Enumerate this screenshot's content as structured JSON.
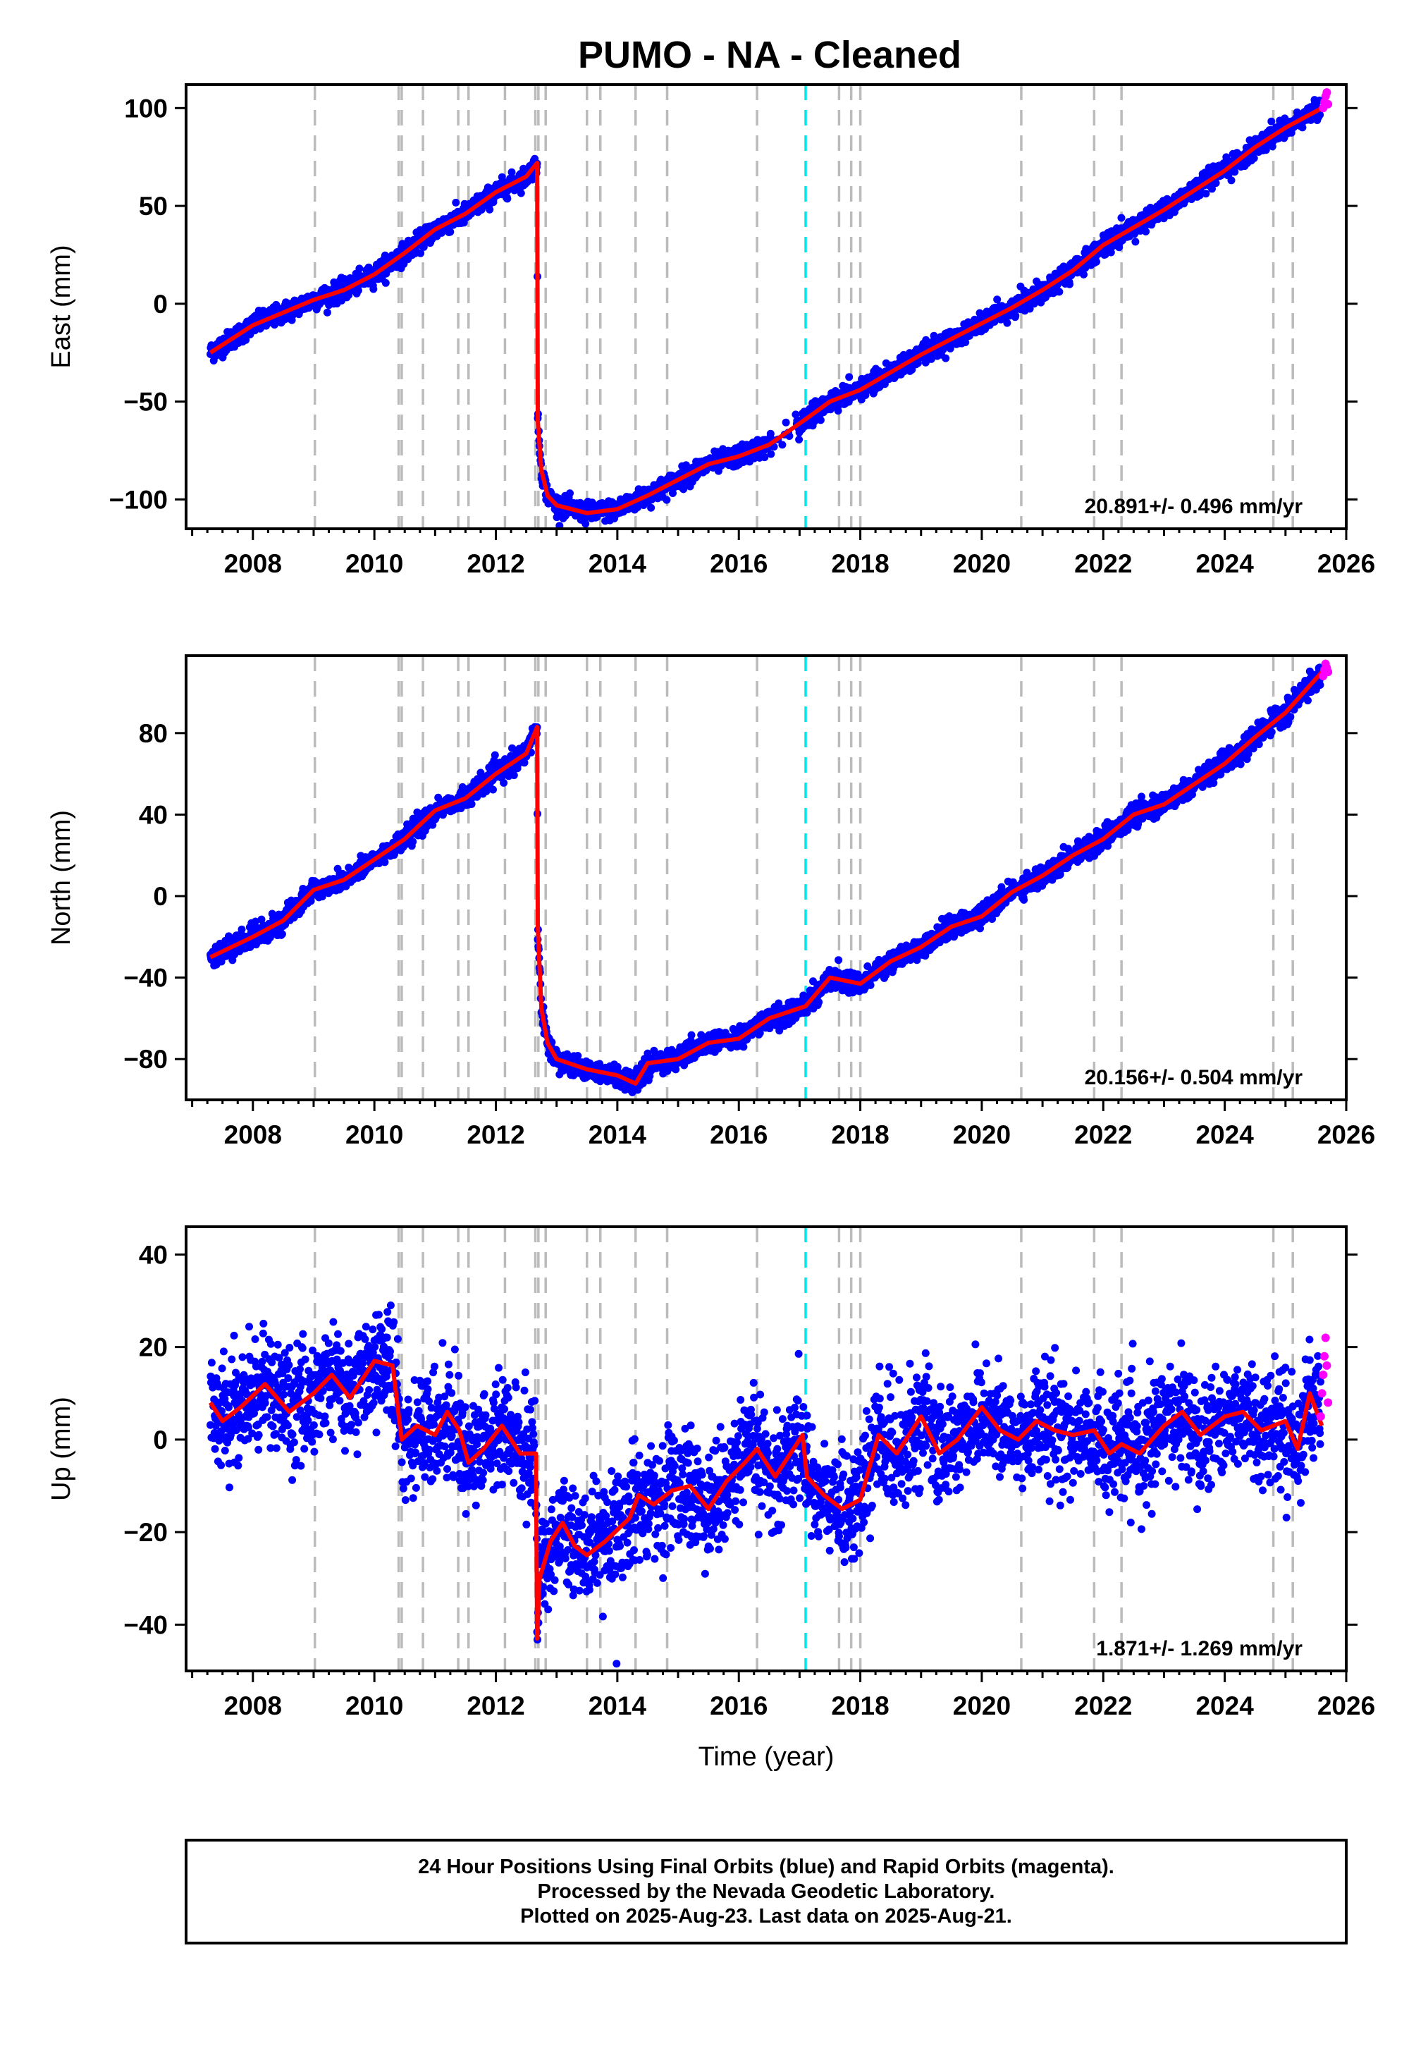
{
  "title": "PUMO  - NA - Cleaned",
  "footer": {
    "line1": "24 Hour Positions Using Final Orbits (blue) and Rapid Orbits (magenta).",
    "line2": "Processed by the Nevada Geodetic Laboratory.",
    "line3": "Plotted on 2025-Aug-23. Last data on 2025-Aug-21."
  },
  "colors": {
    "final_orbits": "#0000ff",
    "rapid_orbits": "#ff00ff",
    "model": "#ff0000",
    "equipment_change": "#bbbbbb",
    "earthquake": "#00e5ee"
  },
  "chart_data": [
    {
      "type": "scatter",
      "ylabel": "East (mm)",
      "xlabel": "",
      "xlim": [
        2006.9,
        2026.0
      ],
      "ylim": [
        -115,
        112
      ],
      "xticks": [
        2008,
        2010,
        2012,
        2014,
        2016,
        2018,
        2020,
        2022,
        2024,
        2026
      ],
      "yticks": [
        -100,
        -50,
        0,
        50,
        100
      ],
      "rate": "20.891+/- 0.496 mm/yr",
      "scatter_noise": 2.5,
      "events_gray": [
        2009.02,
        2010.4,
        2010.45,
        2010.8,
        2011.38,
        2011.55,
        2012.15,
        2012.65,
        2012.7,
        2012.82,
        2013.5,
        2013.72,
        2014.3,
        2014.82,
        2016.3,
        2017.65,
        2017.85,
        2018.0,
        2020.65,
        2021.85,
        2022.3,
        2024.8,
        2025.12
      ],
      "events_cyan": [
        2017.1
      ],
      "series": [
        {
          "role": "model",
          "x": [
            2007.3,
            2008.0,
            2009.0,
            2009.5,
            2010.0,
            2010.5,
            2011.0,
            2011.5,
            2012.0,
            2012.5,
            2012.68,
            2012.69,
            2012.75,
            2012.85,
            2013.0,
            2013.5,
            2014.0,
            2014.5,
            2015.0,
            2015.5,
            2016.0,
            2016.5,
            2017.1,
            2017.5,
            2018.0,
            2018.5,
            2019.0,
            2019.5,
            2020.0,
            2020.5,
            2021.0,
            2021.5,
            2022.0,
            2022.5,
            2023.0,
            2023.5,
            2024.0,
            2024.5,
            2025.0,
            2025.6
          ],
          "y": [
            -25,
            -11,
            2,
            7,
            15,
            26,
            38,
            46,
            57,
            65,
            72,
            -60,
            -85,
            -98,
            -103,
            -107,
            -105,
            -98,
            -90,
            -82,
            -78,
            -72,
            -59,
            -50,
            -44,
            -35,
            -26,
            -18,
            -10,
            -2,
            7,
            17,
            30,
            39,
            48,
            58,
            68,
            80,
            90,
            100
          ]
        },
        {
          "role": "rapid",
          "x": [
            2025.62,
            2025.64,
            2025.66,
            2025.68,
            2025.7
          ],
          "y": [
            100,
            103,
            106,
            108,
            102
          ]
        }
      ]
    },
    {
      "type": "scatter",
      "ylabel": "North (mm)",
      "xlabel": "",
      "xlim": [
        2006.9,
        2026.0
      ],
      "ylim": [
        -100,
        118
      ],
      "xticks": [
        2008,
        2010,
        2012,
        2014,
        2016,
        2018,
        2020,
        2022,
        2024,
        2026
      ],
      "yticks": [
        -80,
        -40,
        0,
        40,
        80
      ],
      "rate": "20.156+/- 0.504 mm/yr",
      "scatter_noise": 2.5,
      "events_gray": [
        2009.02,
        2010.4,
        2010.45,
        2010.8,
        2011.38,
        2011.55,
        2012.15,
        2012.65,
        2012.7,
        2012.82,
        2013.5,
        2013.72,
        2014.3,
        2014.82,
        2016.3,
        2017.65,
        2017.85,
        2018.0,
        2020.65,
        2021.85,
        2022.3,
        2024.8,
        2025.12
      ],
      "events_cyan": [
        2017.1
      ],
      "series": [
        {
          "role": "model",
          "x": [
            2007.3,
            2008.0,
            2008.5,
            2009.0,
            2009.5,
            2010.0,
            2010.5,
            2011.0,
            2011.5,
            2012.0,
            2012.5,
            2012.68,
            2012.69,
            2012.75,
            2012.85,
            2013.0,
            2013.5,
            2014.0,
            2014.3,
            2014.5,
            2015.0,
            2015.5,
            2016.0,
            2016.5,
            2017.1,
            2017.5,
            2018.0,
            2018.5,
            2019.0,
            2019.5,
            2020.0,
            2020.5,
            2021.0,
            2021.5,
            2022.0,
            2022.5,
            2023.0,
            2023.5,
            2024.0,
            2024.5,
            2025.0,
            2025.6
          ],
          "y": [
            -30,
            -20,
            -12,
            3,
            8,
            18,
            28,
            42,
            48,
            60,
            70,
            83,
            -15,
            -55,
            -72,
            -80,
            -85,
            -88,
            -92,
            -82,
            -80,
            -72,
            -70,
            -60,
            -54,
            -40,
            -43,
            -32,
            -25,
            -15,
            -10,
            2,
            10,
            20,
            28,
            40,
            45,
            55,
            65,
            78,
            90,
            110
          ]
        },
        {
          "role": "rapid",
          "x": [
            2025.62,
            2025.64,
            2025.66,
            2025.68,
            2025.7
          ],
          "y": [
            108,
            111,
            114,
            112,
            110
          ]
        }
      ]
    },
    {
      "type": "scatter",
      "ylabel": "Up (mm)",
      "xlabel": "Time (year)",
      "xlim": [
        2006.9,
        2026.0
      ],
      "ylim": [
        -50,
        46
      ],
      "xticks": [
        2008,
        2010,
        2012,
        2014,
        2016,
        2018,
        2020,
        2022,
        2024,
        2026
      ],
      "yticks": [
        -40,
        -20,
        0,
        20,
        40
      ],
      "rate": "1.871+/- 1.269 mm/yr",
      "scatter_noise": 6,
      "events_gray": [
        2009.02,
        2010.4,
        2010.45,
        2010.8,
        2011.38,
        2011.55,
        2012.15,
        2012.65,
        2012.7,
        2012.82,
        2013.5,
        2013.72,
        2014.3,
        2014.82,
        2016.3,
        2017.65,
        2017.85,
        2018.0,
        2020.65,
        2021.85,
        2022.3,
        2024.8,
        2025.12
      ],
      "events_cyan": [
        2017.1
      ],
      "series": [
        {
          "role": "model",
          "x": [
            2007.3,
            2007.5,
            2007.8,
            2008.2,
            2008.6,
            2009.0,
            2009.3,
            2009.6,
            2010.0,
            2010.3,
            2010.45,
            2010.7,
            2011.0,
            2011.2,
            2011.4,
            2011.55,
            2011.8,
            2012.1,
            2012.4,
            2012.66,
            2012.68,
            2012.72,
            2012.9,
            2013.1,
            2013.3,
            2013.5,
            2013.8,
            2014.2,
            2014.35,
            2014.6,
            2014.9,
            2015.2,
            2015.5,
            2015.8,
            2016.1,
            2016.3,
            2016.6,
            2017.05,
            2017.12,
            2017.4,
            2017.7,
            2018.0,
            2018.3,
            2018.6,
            2019.0,
            2019.3,
            2019.6,
            2020.0,
            2020.3,
            2020.6,
            2020.9,
            2021.2,
            2021.5,
            2021.85,
            2022.1,
            2022.3,
            2022.6,
            2023.0,
            2023.3,
            2023.6,
            2024.0,
            2024.3,
            2024.6,
            2025.0,
            2025.2,
            2025.4,
            2025.6
          ],
          "y": [
            8,
            4,
            7,
            12,
            6,
            10,
            14,
            9,
            17,
            16,
            0,
            3,
            1,
            6,
            2,
            -5,
            -2,
            3,
            -3,
            -3,
            -43,
            -30,
            -22,
            -18,
            -23,
            -25,
            -22,
            -17,
            -12,
            -14,
            -11,
            -10,
            -15,
            -9,
            -5,
            -2,
            -8,
            1,
            -8,
            -12,
            -15,
            -13,
            1,
            -3,
            5,
            -3,
            0,
            7,
            2,
            0,
            4,
            2,
            1,
            2,
            -3,
            -1,
            -3,
            3,
            6,
            1,
            5,
            6,
            2,
            4,
            -2,
            10,
            3
          ]
        },
        {
          "role": "rapid",
          "x": [
            2025.58,
            2025.6,
            2025.62,
            2025.64,
            2025.66,
            2025.68,
            2025.7
          ],
          "y": [
            5,
            10,
            14,
            18,
            22,
            16,
            8
          ]
        }
      ]
    }
  ]
}
